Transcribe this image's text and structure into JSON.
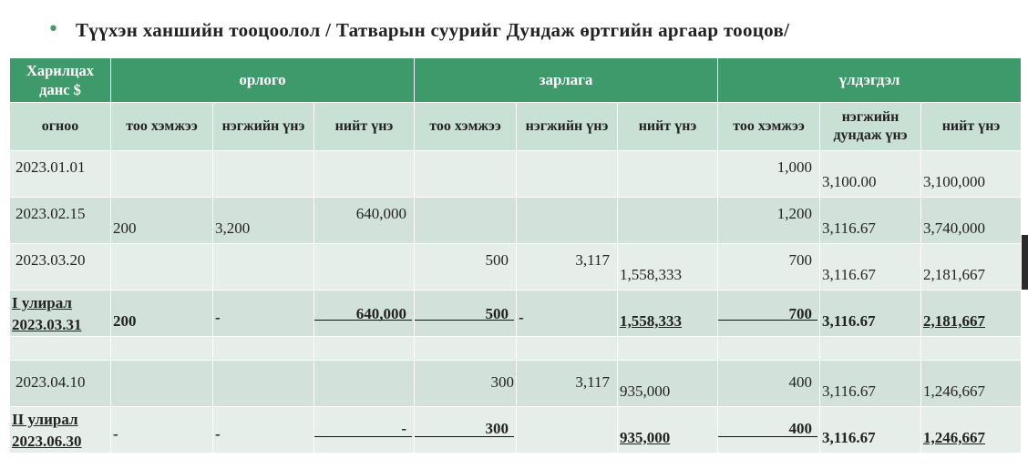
{
  "title": "Түүхэн ханшийн тооцоолол / Татварын суурийг Дундаж өртгийн аргаар тооцов/",
  "header": {
    "account": "Харилцах данс $",
    "income": "орлого",
    "expense": "зарлага",
    "balance": "үлдэгдэл"
  },
  "subheader": {
    "date": "огноо",
    "qty": "тоо хэмжээ",
    "unit_price": "нэгжийн үнэ",
    "total": "нийт үнэ",
    "avg_unit_price": "нэгжийн дундаж үнэ"
  },
  "rows": [
    {
      "date": "2023.01.01",
      "in_qty": "",
      "in_price": "",
      "in_total": "",
      "out_qty": "",
      "out_price": "",
      "out_total": "",
      "bal_qty": "1,000",
      "bal_price": "3,100.00",
      "bal_total": "3,100,000"
    },
    {
      "date": "2023.02.15",
      "in_qty": "200",
      "in_price": "3,200",
      "in_total": "640,000",
      "out_qty": "",
      "out_price": "",
      "out_total": "",
      "bal_qty": "1,200",
      "bal_price": "3,116.67",
      "bal_total": "3,740,000"
    },
    {
      "date": "2023.03.20",
      "in_qty": "",
      "in_price": "",
      "in_total": "",
      "out_qty": "500",
      "out_price": "3,117",
      "out_total": "1,558,333",
      "bal_qty": "700",
      "bal_price": "3,116.67",
      "bal_total": "2,181,667"
    },
    {
      "label": "I улирал",
      "date": "2023.03.31",
      "in_qty": "200",
      "in_price": "-",
      "in_total": "640,000",
      "out_qty": "500",
      "out_price": "-",
      "out_total": "1,558,333",
      "bal_qty": "700",
      "bal_price": "3,116.67",
      "bal_total": "2,181,667"
    },
    {
      "date": "2023.04.10",
      "in_qty": "",
      "in_price": "",
      "in_total": "",
      "out_qty": "300",
      "out_price": "3,117",
      "out_total": "935,000",
      "bal_qty": "400",
      "bal_price": "3,116.67",
      "bal_total": "1,246,667"
    },
    {
      "label": "II улирал",
      "date": "2023.06.30",
      "in_qty": "-",
      "in_price": "-",
      "in_total": "-",
      "out_qty": "300",
      "out_price": "",
      "out_total": "935,000",
      "bal_qty": "400",
      "bal_price": "3,116.67",
      "bal_total": "1,246,667"
    }
  ]
}
